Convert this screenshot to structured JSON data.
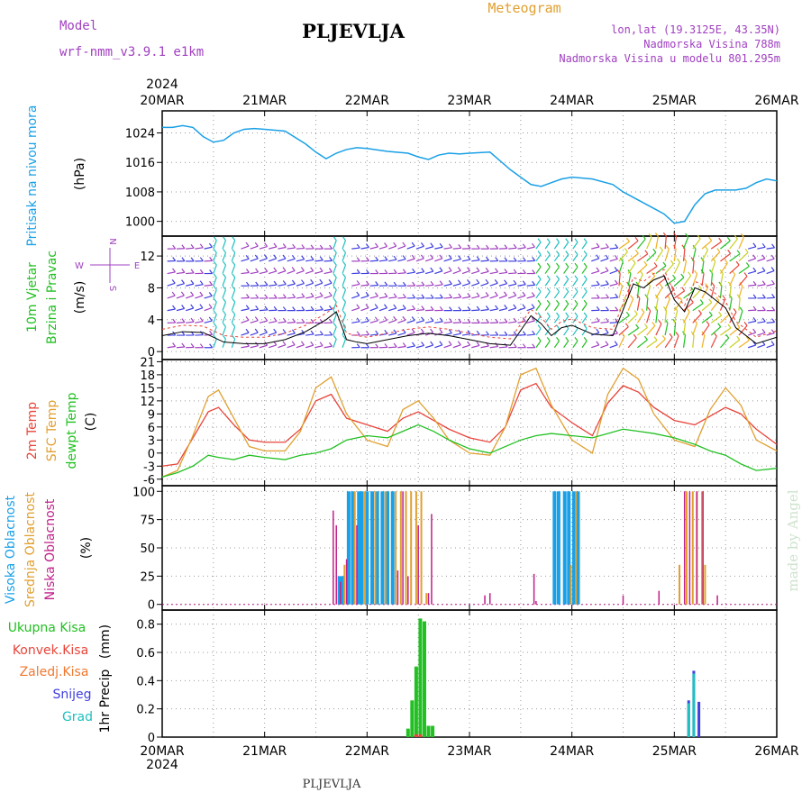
{
  "header": {
    "title": "PLJEVLJA",
    "meteogram": "Meteogram",
    "model_label": "Model",
    "model_name": "wrf-nmm_v3.9.1 e1km",
    "coords": "lon,lat (19.3125E, 43.35N)",
    "altitude": "Nadmorska Visina 788m",
    "model_altitude": "Nadmorska Visina u modelu 801.295m",
    "year": "2024",
    "footer_station": "PLJEVLJA",
    "watermark": "made by Angel"
  },
  "colors": {
    "pressure": "#1aa0e6",
    "t2m": "#e8443a",
    "sfc": "#e0a030",
    "dew": "#22c022",
    "high_cloud": "#1aa0e6",
    "mid_cloud": "#e0a030",
    "low_cloud": "#c0208a",
    "total_precip": "#22c022",
    "conv_precip": "#e8443a",
    "frozen_precip": "#f07830",
    "snow": "#4040e0",
    "graupel": "#20c0c0",
    "wind_label": "#22c022",
    "wind_dir_label": "#22c022",
    "wind_units": "#000000",
    "compass": "#a040c0"
  },
  "time_axis": {
    "labels": [
      "20MAR",
      "21MAR",
      "22MAR",
      "23MAR",
      "24MAR",
      "25MAR",
      "26MAR"
    ],
    "year": "2024"
  },
  "chart_data": [
    {
      "type": "line",
      "name": "pressure",
      "ylabel": "Pritisak na nivou mora",
      "units": "(hPa)",
      "ylim": [
        996,
        1030
      ],
      "yticks": [
        1000,
        1008,
        1016,
        1024
      ],
      "x": [
        0,
        0.1,
        0.2,
        0.3,
        0.4,
        0.5,
        0.6,
        0.7,
        0.8,
        0.9,
        1.0,
        1.2,
        1.4,
        1.5,
        1.6,
        1.7,
        1.8,
        1.9,
        2.0,
        2.2,
        2.4,
        2.5,
        2.6,
        2.7,
        2.8,
        2.9,
        3.0,
        3.2,
        3.4,
        3.5,
        3.6,
        3.7,
        3.8,
        3.9,
        4.0,
        4.2,
        4.4,
        4.5,
        4.6,
        4.7,
        4.8,
        4.9,
        5.0,
        5.1,
        5.2,
        5.3,
        5.4,
        5.5,
        5.6,
        5.7,
        5.8,
        5.9,
        6.0
      ],
      "y": [
        1025.5,
        1025.5,
        1026.0,
        1025.5,
        1023,
        1021.5,
        1022,
        1024,
        1025,
        1025.2,
        1025,
        1024.5,
        1021,
        1018.8,
        1017,
        1018.5,
        1019.5,
        1020,
        1019.8,
        1019,
        1018.5,
        1017.5,
        1016.8,
        1018,
        1018.5,
        1018.3,
        1018.5,
        1018.8,
        1014,
        1012,
        1010,
        1009.5,
        1010.5,
        1011.5,
        1012,
        1011.5,
        1010,
        1008,
        1006.5,
        1005,
        1003.5,
        1002,
        999.5,
        1000,
        1004.5,
        1007.5,
        1008.5,
        1008.5,
        1008.5,
        1009,
        1010.5,
        1011.5,
        1011
      ]
    },
    {
      "type": "line",
      "name": "wind",
      "ylabel": "10m Vjetar",
      "ylabel2": "Brzina i Pravac",
      "units": "(m/s)",
      "compass_n": "N",
      "compass_s": "S",
      "compass_e": "E",
      "compass_w": "W",
      "ylim": [
        -1,
        14.5
      ],
      "yticks": [
        0,
        4,
        8,
        12
      ],
      "speed_x": [
        0,
        0.2,
        0.4,
        0.6,
        0.8,
        1.0,
        1.2,
        1.4,
        1.6,
        1.7,
        1.8,
        1.9,
        2.0,
        2.2,
        2.4,
        2.6,
        2.8,
        3.0,
        3.2,
        3.4,
        3.6,
        3.7,
        3.8,
        3.9,
        4.0,
        4.2,
        4.4,
        4.6,
        4.7,
        4.8,
        4.9,
        5.0,
        5.1,
        5.2,
        5.3,
        5.4,
        5.5,
        5.6,
        5.8,
        6.0
      ],
      "speed_y": [
        2.0,
        2.5,
        2.4,
        1.2,
        1.0,
        1.0,
        1.5,
        2.5,
        4.0,
        5.0,
        1.5,
        1.2,
        1.0,
        1.5,
        2.0,
        2.3,
        2.0,
        1.5,
        1.0,
        0.8,
        4.5,
        3.5,
        2.0,
        3.0,
        3.3,
        2.2,
        2.0,
        8.5,
        8.0,
        9.0,
        9.5,
        6.5,
        5.0,
        8.0,
        7.5,
        6.5,
        5.5,
        3.0,
        1.0,
        1.8
      ]
    },
    {
      "type": "line",
      "name": "temperature",
      "ylabel": "2m Temp",
      "ylabel2": "SFC Temp",
      "ylabel3": "dewpt Temp",
      "units": "(C)",
      "ylim": [
        -7.5,
        21.5
      ],
      "yticks": [
        -6,
        -3,
        0,
        3,
        6,
        9,
        12,
        15,
        18,
        21
      ],
      "series": [
        {
          "name": "2m Temp",
          "color": "#e8443a",
          "x": [
            0,
            0.15,
            0.3,
            0.45,
            0.55,
            0.7,
            0.85,
            1.0,
            1.2,
            1.35,
            1.5,
            1.65,
            1.8,
            2.0,
            2.2,
            2.35,
            2.5,
            2.65,
            2.8,
            3.0,
            3.2,
            3.35,
            3.5,
            3.65,
            3.8,
            4.0,
            4.2,
            4.35,
            4.5,
            4.65,
            4.8,
            5.0,
            5.2,
            5.35,
            5.5,
            5.65,
            5.8,
            6.0
          ],
          "y": [
            -3,
            -2.5,
            3.5,
            9.5,
            10.5,
            6.5,
            3,
            2.5,
            2.5,
            5.5,
            12,
            13.5,
            8,
            6.5,
            5,
            8,
            9.5,
            7.5,
            5.5,
            3.5,
            2.5,
            6,
            14.5,
            16,
            10.5,
            7,
            4,
            11.5,
            15.5,
            14,
            10.5,
            7.5,
            6.5,
            8.5,
            10.5,
            9,
            5.5,
            2
          ]
        },
        {
          "name": "SFC Temp",
          "color": "#e0a030",
          "x": [
            0,
            0.15,
            0.3,
            0.45,
            0.55,
            0.7,
            0.85,
            1.0,
            1.2,
            1.35,
            1.5,
            1.65,
            1.8,
            2.0,
            2.2,
            2.35,
            2.5,
            2.65,
            2.8,
            3.0,
            3.2,
            3.35,
            3.5,
            3.65,
            3.8,
            4.0,
            4.2,
            4.35,
            4.5,
            4.65,
            4.8,
            5.0,
            5.2,
            5.35,
            5.5,
            5.65,
            5.8,
            6.0
          ],
          "y": [
            -5.5,
            -4,
            4,
            13,
            14.5,
            8,
            1.5,
            0.5,
            0.5,
            5,
            15,
            17.5,
            9,
            3,
            1.5,
            10,
            12,
            8,
            3,
            0,
            -0.5,
            6,
            18,
            19.5,
            11,
            3,
            0,
            13.5,
            19.5,
            17,
            9,
            3,
            1.5,
            10,
            15,
            11,
            3,
            0.5
          ]
        },
        {
          "name": "dewpt Temp",
          "color": "#22c022",
          "x": [
            0,
            0.15,
            0.3,
            0.45,
            0.55,
            0.7,
            0.85,
            1.0,
            1.2,
            1.35,
            1.5,
            1.65,
            1.8,
            2.0,
            2.2,
            2.35,
            2.5,
            2.65,
            2.8,
            3.0,
            3.2,
            3.35,
            3.5,
            3.65,
            3.8,
            4.0,
            4.2,
            4.35,
            4.5,
            4.65,
            4.8,
            5.0,
            5.2,
            5.35,
            5.5,
            5.65,
            5.8,
            6.0
          ],
          "y": [
            -5.5,
            -4.5,
            -3,
            -0.5,
            -1,
            -1.5,
            -0.5,
            -1,
            -1.5,
            -0.5,
            0,
            1,
            3,
            4,
            3.5,
            5,
            6.5,
            5,
            3,
            1,
            0,
            1.5,
            3,
            4,
            4.5,
            4,
            3.5,
            4.5,
            5.5,
            5,
            4.5,
            3.5,
            2,
            0.5,
            -0.5,
            -2.5,
            -4,
            -3.5
          ]
        }
      ]
    },
    {
      "type": "bar",
      "name": "cloud",
      "ylabel": "Visoka Oblacnost",
      "ylabel2": "Srednja Oblacnost",
      "ylabel3": "Niska Oblacnost",
      "units": "(%)",
      "ylim": [
        -5,
        105
      ],
      "yticks": [
        0,
        25,
        50,
        75,
        100
      ],
      "high": {
        "x": [
          1.73,
          1.76,
          1.82,
          1.86,
          1.92,
          1.95,
          2.0,
          2.05,
          2.1,
          2.15,
          2.2,
          2.25,
          3.83,
          3.87,
          3.93,
          3.97,
          4.02,
          4.06
        ],
        "y": [
          25,
          25,
          100,
          100,
          100,
          100,
          100,
          100,
          100,
          100,
          100,
          100,
          100,
          100,
          100,
          100,
          100,
          100
        ]
      },
      "mid": {
        "x": [
          1.78,
          1.88,
          1.98,
          2.08,
          2.18,
          2.28,
          2.33,
          2.38,
          2.43,
          2.48,
          2.53,
          2.58,
          3.99,
          4.04,
          5.05,
          5.12,
          5.18,
          5.22,
          5.27,
          5.3
        ],
        "y": [
          35,
          100,
          100,
          100,
          100,
          100,
          100,
          100,
          100,
          100,
          100,
          10,
          35,
          100,
          35,
          100,
          100,
          100,
          100,
          35
        ]
      },
      "low": {
        "x": [
          1.67,
          1.7,
          1.74,
          1.8,
          1.9,
          2.3,
          2.35,
          2.4,
          2.5,
          2.6,
          2.63,
          3.15,
          3.2,
          3.63,
          3.65,
          4.5,
          4.85,
          5.1,
          5.15,
          5.22,
          5.28,
          5.42
        ],
        "y": [
          83,
          70,
          20,
          40,
          70,
          30,
          100,
          25,
          70,
          10,
          80,
          8,
          10,
          27,
          3,
          8,
          12,
          100,
          100,
          100,
          100,
          8
        ]
      }
    },
    {
      "type": "bar",
      "name": "precip",
      "ylabel": "1hr Precip",
      "units": "(mm)",
      "ylim": [
        0,
        0.9
      ],
      "yticks": [
        0,
        0.2,
        0.4,
        0.6,
        0.8
      ],
      "total": {
        "x": [
          2.4,
          2.44,
          2.48,
          2.52,
          2.56,
          2.6,
          2.64
        ],
        "y": [
          0.06,
          0.26,
          0.5,
          0.84,
          0.82,
          0.08,
          0.08
        ]
      },
      "conv": {
        "x": [
          2.48,
          2.52
        ],
        "y": [
          0.02,
          0.02
        ]
      },
      "snow": {
        "x": [
          5.14,
          5.19,
          5.24
        ],
        "y": [
          0.26,
          0.47,
          0.25
        ]
      },
      "graupel": {
        "x": [
          5.14,
          5.19
        ],
        "y": [
          0.24,
          0.45
        ]
      }
    }
  ],
  "legend_labels": {
    "total": "Ukupna Kisa",
    "conv": "Konvek.Kisa",
    "frozen": "Zaledj.Kisa",
    "snow": "Snijeg",
    "graupel": "Grad"
  }
}
